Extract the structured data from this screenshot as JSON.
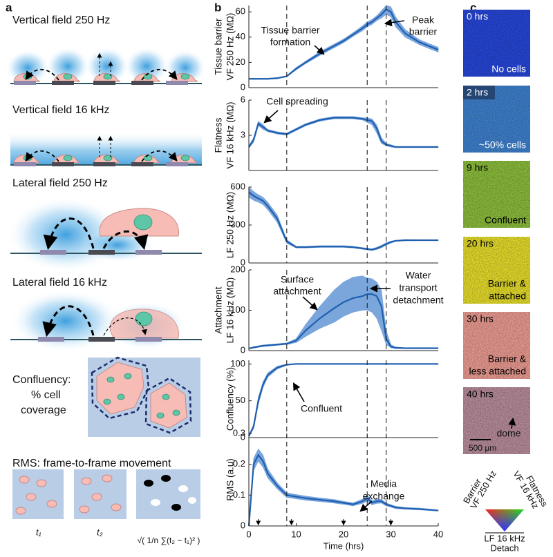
{
  "panel_labels": [
    "a",
    "b",
    "c"
  ],
  "panel_a": {
    "titles": [
      "Vertical field 250 Hz",
      "Vertical field 16 kHz",
      "Lateral field 250 Hz",
      "Lateral field 16 kHz"
    ],
    "confluency": [
      "Confluency:",
      "% cell",
      "coverage"
    ],
    "rms_title": "RMS: frame-to-frame movement",
    "rms_labels": [
      "t₁",
      "t₂",
      "√( 1/n ∑(t₂ − t₁)² )"
    ]
  },
  "chart_data": [
    {
      "type": "line",
      "ylabel": [
        "Tissue barrier",
        "VF 250 Hz (MΩ)"
      ],
      "x": [
        0,
        1,
        2,
        3,
        4,
        6,
        8,
        10,
        12,
        15,
        18,
        20,
        22,
        24,
        25,
        26,
        27,
        28,
        29,
        30,
        31,
        33,
        36,
        40
      ],
      "xlim": [
        0,
        40
      ],
      "ylim": [
        0,
        65
      ],
      "yticks": [
        0,
        20,
        40,
        60
      ],
      "vlines": [
        8,
        25,
        29
      ],
      "band_color": "#7aa6dc",
      "series": [
        {
          "color": "#1f5fb0",
          "values": [
            7,
            7,
            7,
            7,
            7,
            7.5,
            9,
            15,
            20,
            27,
            33,
            37,
            42,
            47,
            50,
            52,
            55,
            58,
            62,
            60,
            52,
            43,
            36,
            30
          ],
          "lower": [
            6.5,
            6.5,
            6.5,
            6.5,
            6.5,
            7,
            8.5,
            14,
            19,
            25.5,
            31.5,
            35.5,
            40.5,
            45,
            48,
            50,
            53,
            55,
            58,
            56,
            48,
            40,
            34,
            28
          ],
          "upper": [
            7.5,
            7.5,
            7.5,
            7.5,
            7.5,
            8,
            9.5,
            16,
            21,
            28.5,
            34.5,
            38.5,
            43.5,
            49,
            52,
            54,
            57,
            61,
            65,
            64,
            56,
            46,
            38,
            32
          ]
        }
      ],
      "annotations": [
        [
          "Tissue barrier",
          "formation"
        ],
        [
          "Peak",
          "barrier"
        ]
      ]
    },
    {
      "type": "line",
      "ylabel": [
        "Flatness",
        "VF 16 kHz (MΩ)"
      ],
      "x": [
        0,
        1,
        2,
        3,
        4,
        6,
        8,
        10,
        12,
        15,
        18,
        20,
        22,
        24,
        25,
        26,
        27,
        28,
        29,
        30,
        31,
        33,
        36,
        40
      ],
      "xlim": [
        0,
        40
      ],
      "ylim": [
        0,
        6
      ],
      "yticks": [
        3,
        6
      ],
      "vlines": [
        8,
        25,
        29
      ],
      "band_color": "#7aa6dc",
      "series": [
        {
          "color": "#1f5fb0",
          "values": [
            2,
            2.6,
            4,
            3.7,
            3.4,
            3.2,
            3.1,
            3.5,
            3.9,
            4.3,
            4.5,
            4.5,
            4.5,
            4.4,
            4.3,
            4.2,
            3.6,
            2.5,
            2.2,
            2.1,
            2,
            2,
            2,
            2
          ],
          "lower": [
            1.9,
            2.4,
            3.8,
            3.5,
            3.3,
            3.1,
            3,
            3.4,
            3.8,
            4.2,
            4.4,
            4.4,
            4.4,
            4.3,
            4.1,
            3.9,
            3.2,
            2.3,
            2.1,
            2,
            1.95,
            1.95,
            1.95,
            1.95
          ],
          "upper": [
            2.1,
            2.8,
            4.2,
            3.9,
            3.5,
            3.3,
            3.2,
            3.6,
            4,
            4.4,
            4.6,
            4.6,
            4.6,
            4.5,
            4.5,
            4.4,
            3.9,
            2.8,
            2.3,
            2.2,
            2.05,
            2.05,
            2.05,
            2.05
          ]
        }
      ],
      "annotations": [
        [
          "Cell spreading"
        ]
      ]
    },
    {
      "type": "line",
      "ylabel": [
        "LF 250 Hz (MΩ)"
      ],
      "x": [
        0,
        1,
        2,
        3,
        4,
        6,
        8,
        10,
        12,
        15,
        18,
        20,
        22,
        24,
        25,
        26,
        27,
        28,
        29,
        30,
        31,
        33,
        36,
        40
      ],
      "xlim": [
        0,
        40
      ],
      "ylim": [
        0,
        600
      ],
      "yticks": [
        0,
        300,
        600
      ],
      "vlines": [
        8,
        25,
        29
      ],
      "band_color": "#7aa6dc",
      "series": [
        {
          "color": "#1f5fb0",
          "values": [
            560,
            530,
            510,
            490,
            450,
            350,
            170,
            125,
            125,
            130,
            130,
            130,
            125,
            115,
            110,
            105,
            115,
            130,
            150,
            165,
            175,
            180,
            180,
            180
          ],
          "lower": [
            520,
            495,
            480,
            460,
            420,
            320,
            155,
            118,
            118,
            123,
            123,
            123,
            118,
            108,
            103,
            98,
            106,
            120,
            140,
            157,
            170,
            175,
            176,
            176
          ],
          "upper": [
            600,
            565,
            540,
            520,
            480,
            380,
            185,
            132,
            132,
            137,
            137,
            137,
            132,
            122,
            117,
            112,
            124,
            140,
            160,
            173,
            180,
            185,
            184,
            184
          ]
        }
      ],
      "annotations": []
    },
    {
      "type": "line",
      "ylabel": [
        "Attachment",
        "LF 16 kHz (MΩ)"
      ],
      "x": [
        0,
        1,
        2,
        3,
        4,
        6,
        8,
        10,
        12,
        15,
        18,
        20,
        22,
        24,
        25,
        26,
        27,
        28,
        29,
        30,
        31,
        33,
        36,
        40
      ],
      "xlim": [
        0,
        40
      ],
      "ylim": [
        0,
        200
      ],
      "yticks": [
        0,
        100,
        200
      ],
      "vlines": [
        8,
        25,
        29
      ],
      "band_color": "#7aa6dc",
      "series": [
        {
          "color": "#1f5fb0",
          "values": [
            5,
            8,
            10,
            12,
            13,
            15,
            17,
            25,
            50,
            80,
            105,
            120,
            130,
            135,
            140,
            140,
            135,
            110,
            30,
            10,
            7,
            6,
            6,
            6
          ],
          "lower": [
            4,
            6,
            8,
            10,
            11,
            13,
            15,
            20,
            35,
            55,
            70,
            85,
            95,
            100,
            100,
            95,
            80,
            50,
            15,
            7,
            5,
            5,
            5,
            5
          ],
          "upper": [
            6,
            10,
            12,
            14,
            15,
            17,
            19,
            30,
            65,
            110,
            150,
            170,
            182,
            185,
            180,
            178,
            170,
            150,
            50,
            15,
            9,
            7,
            7,
            7
          ]
        }
      ],
      "annotations": [
        [
          "Surface",
          "attachment"
        ],
        [
          "Water",
          "transport",
          "detachment"
        ]
      ]
    },
    {
      "type": "line",
      "ylabel": [
        "Confluency (%)"
      ],
      "x": [
        0,
        1,
        2,
        3,
        4,
        6,
        8,
        10,
        12,
        15,
        18,
        20,
        22,
        24,
        25,
        26,
        27,
        28,
        29,
        30,
        31,
        33,
        36,
        40
      ],
      "xlim": [
        0,
        40
      ],
      "ylim": [
        0,
        105
      ],
      "yticks": [
        0,
        50,
        100
      ],
      "vlines": [
        8,
        25,
        29
      ],
      "band_color": "#7aa6dc",
      "series": [
        {
          "color": "#1f5fb0",
          "values": [
            2,
            15,
            50,
            72,
            85,
            95,
            99,
            100,
            100,
            100,
            100,
            100,
            100,
            100,
            100,
            100,
            100,
            100,
            100,
            100,
            100,
            100,
            100,
            100
          ],
          "lower": [
            1,
            12,
            45,
            68,
            82,
            93,
            98,
            99.5,
            99.5,
            99.5,
            99.5,
            99.5,
            99.5,
            99.5,
            99.5,
            99.5,
            99.5,
            99.5,
            99.5,
            99.5,
            99.5,
            99.5,
            99.5,
            99.5
          ],
          "upper": [
            3,
            18,
            55,
            76,
            88,
            97,
            100,
            100.5,
            100.5,
            100.5,
            100.5,
            100.5,
            100.5,
            100.5,
            100.5,
            100.5,
            100.5,
            100.5,
            100.5,
            100.5,
            100.5,
            100.5,
            100.5,
            100.5
          ]
        }
      ],
      "annotations": [
        [
          "Confluent"
        ]
      ]
    },
    {
      "type": "line",
      "ylabel": [
        "RMS (a.u)"
      ],
      "xlabel": "Time (hrs)",
      "x": [
        0,
        1,
        2,
        3,
        4,
        6,
        8,
        10,
        12,
        15,
        18,
        20,
        22,
        24,
        25,
        26,
        27,
        28,
        29,
        30,
        31,
        33,
        36,
        40
      ],
      "xlim": [
        0,
        40
      ],
      "xticks": [
        0,
        10,
        20,
        30,
        40
      ],
      "ylim": [
        0,
        0.3
      ],
      "yticks": [
        0,
        0.1,
        0.2,
        0.3
      ],
      "vlines": [
        8,
        25,
        29
      ],
      "markers": [
        2,
        9,
        20,
        30
      ],
      "band_color": "#7aa6dc",
      "series": [
        {
          "color": "#1f5fb0",
          "values": [
            0,
            0.2,
            0.23,
            0.21,
            0.17,
            0.13,
            0.1,
            0.095,
            0.09,
            0.085,
            0.08,
            0.075,
            0.07,
            0.08,
            0.09,
            0.075,
            0.08,
            0.08,
            0.07,
            0.065,
            0.06,
            0.057,
            0.055,
            0.05
          ],
          "lower": [
            0,
            0.18,
            0.21,
            0.19,
            0.155,
            0.12,
            0.092,
            0.088,
            0.083,
            0.079,
            0.074,
            0.07,
            0.065,
            0.073,
            0.08,
            0.068,
            0.073,
            0.074,
            0.065,
            0.061,
            0.056,
            0.054,
            0.052,
            0.048
          ],
          "upper": [
            0,
            0.22,
            0.25,
            0.23,
            0.185,
            0.14,
            0.108,
            0.102,
            0.097,
            0.091,
            0.086,
            0.08,
            0.075,
            0.087,
            0.1,
            0.082,
            0.087,
            0.086,
            0.075,
            0.069,
            0.064,
            0.06,
            0.058,
            0.052
          ]
        }
      ],
      "annotations": [
        [
          "Media",
          "exchange"
        ]
      ]
    }
  ],
  "panel_c": {
    "tiles": [
      {
        "time": "0 hrs",
        "caption": [
          "No cells"
        ]
      },
      {
        "time": "2 hrs",
        "caption": [
          "~50% cells"
        ]
      },
      {
        "time": "9 hrs",
        "caption": [
          "Confluent"
        ]
      },
      {
        "time": "20 hrs",
        "caption": [
          "Barrier &",
          "attached"
        ]
      },
      {
        "time": "30 hrs",
        "caption": [
          "Barrier &",
          "less attached"
        ]
      },
      {
        "time": "40 hrs",
        "caption": [
          "dome"
        ]
      }
    ],
    "scale_bar": "500 µm",
    "legend": {
      "left": [
        "Barrier",
        "VF 250 Hz"
      ],
      "right": [
        "Flatness",
        "VF 16 kHz"
      ],
      "bottom": [
        "LF 16 kHz",
        "Detach"
      ]
    }
  }
}
